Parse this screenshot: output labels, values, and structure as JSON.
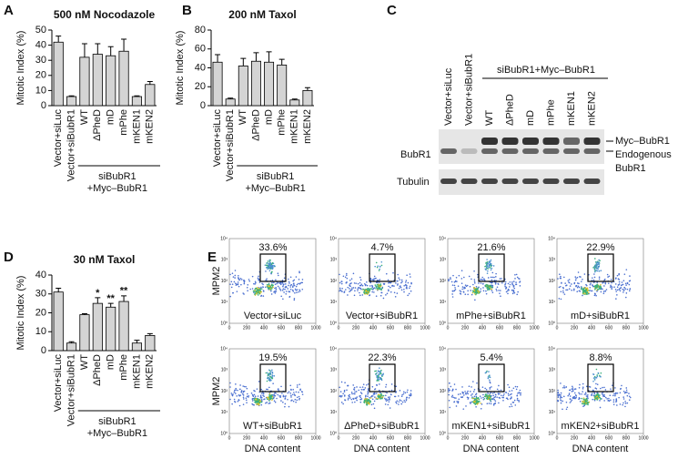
{
  "panel_labels": [
    "A",
    "B",
    "C",
    "D",
    "E"
  ],
  "chart_data": [
    {
      "type": "bar",
      "title": "500 nM Nocodazole",
      "y_label": "Mitotic Index (%)",
      "categories": [
        "Vector+siLuc",
        "Vector+siBubR1",
        "WT",
        "ΔPheD",
        "mD",
        "mPhe",
        "mKEN1",
        "mKEN2"
      ],
      "values": [
        42,
        6,
        32,
        34,
        33,
        36,
        6,
        14
      ],
      "errors": [
        4,
        0.5,
        9,
        7,
        6,
        8,
        0.5,
        2
      ],
      "color": "#d4d4d4",
      "ylim": [
        0,
        50
      ],
      "yticks": [
        0,
        10,
        20,
        30,
        40,
        50
      ],
      "group_label": [
        "siBubR1",
        "+Myc–BubR1"
      ]
    },
    {
      "type": "bar",
      "title": "200 nM Taxol",
      "y_label": "Mitotic Index (%)",
      "categories": [
        "Vector+siLuc",
        "Vector+siBubR1",
        "WT",
        "ΔPheD",
        "mD",
        "mPhe",
        "mKEN1",
        "mKEN2"
      ],
      "values": [
        46,
        7,
        42,
        47,
        46,
        43,
        6,
        16
      ],
      "errors": [
        8,
        1,
        8,
        9,
        11,
        6,
        1,
        3
      ],
      "color": "#d4d4d4",
      "ylim": [
        0,
        80
      ],
      "yticks": [
        0,
        20,
        40,
        60,
        80
      ],
      "group_label": [
        "siBubR1",
        "+Myc–BubR1"
      ]
    },
    {
      "type": "bar",
      "title": "30 nM Taxol",
      "y_label": "Mitotic Index (%)",
      "categories": [
        "Vector+siLuc",
        "Vector+siBubR1",
        "WT",
        "ΔPheD",
        "mD",
        "mPhe",
        "mKEN1",
        "mKEN2"
      ],
      "values": [
        31,
        4,
        19,
        25,
        23,
        26,
        4,
        8
      ],
      "errors": [
        2,
        0.7,
        0.5,
        3,
        2,
        3,
        1.5,
        1
      ],
      "significance": [
        null,
        null,
        null,
        "*",
        "**",
        "**",
        null,
        null
      ],
      "color": "#d4d4d4",
      "ylim": [
        0,
        40
      ],
      "yticks": [
        0,
        10,
        20,
        30,
        40
      ],
      "group_label": [
        "siBubR1",
        "+Myc–BubR1"
      ]
    }
  ],
  "blot": {
    "lanes": [
      "Vector+siLuc",
      "Vector+siBubR1",
      "WT",
      "ΔPheD",
      "mD",
      "mPhe",
      "mKEN1",
      "mKEN2"
    ],
    "group_label": "siBubR1+Myc–BubR1",
    "rows": [
      "BubR1",
      "Tubulin"
    ],
    "band_labels": [
      "Myc–BubR1",
      "Endogenous",
      "BubR1"
    ]
  },
  "flow": {
    "y_label": "MPM2",
    "x_label": "DNA content",
    "xticks": [
      0,
      200,
      400,
      600,
      800,
      1000
    ],
    "yticks": [
      "10⁰",
      "10¹",
      "10²",
      "10³",
      "10⁴"
    ],
    "plots": [
      {
        "percent": "33.6%",
        "label": "Vector+siLuc"
      },
      {
        "percent": "4.7%",
        "label": "Vector+siBubR1"
      },
      {
        "percent": "21.6%",
        "label": "mPhe+siBubR1"
      },
      {
        "percent": "22.9%",
        "label": "mD+siBubR1"
      },
      {
        "percent": "19.5%",
        "label": "WT+siBubR1"
      },
      {
        "percent": "22.3%",
        "label": "ΔPheD+siBubR1"
      },
      {
        "percent": "5.4%",
        "label": "mKEN1+siBubR1"
      },
      {
        "percent": "8.8%",
        "label": "mKEN2+siBubR1"
      }
    ]
  }
}
